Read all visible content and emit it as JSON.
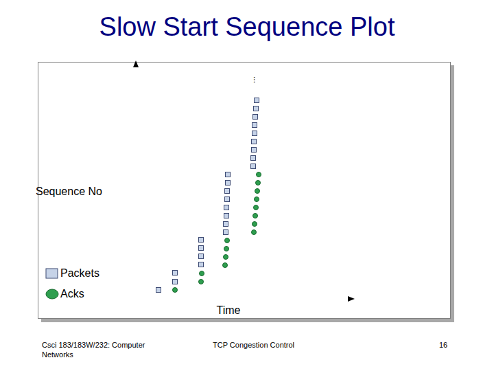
{
  "chart_data": {
    "type": "scatter",
    "title": "Slow Start Sequence Plot",
    "x_label": "Time",
    "y_label": "Sequence No",
    "tick_labels": false,
    "xlim": [
      0,
      317
    ],
    "ylim": [
      0,
      345
    ],
    "annotation": "...",
    "series": [
      {
        "name": "Packets",
        "color": "#c6d3e8",
        "marker": "square",
        "x": [
          33,
          57,
          57,
          95,
          95,
          95,
          95,
          131,
          131,
          132,
          132,
          133,
          133,
          134,
          134,
          171,
          171,
          172,
          172,
          173,
          173,
          174,
          175,
          176
        ],
        "values": [
          13,
          25,
          38,
          50,
          62,
          74,
          86,
          97,
          109,
          121,
          133,
          145,
          157,
          169,
          181,
          193,
          205,
          217,
          229,
          241,
          253,
          265,
          277,
          289
        ]
      },
      {
        "name": "Acks",
        "color": "#2e9e4f",
        "marker": "circle",
        "x": [
          57,
          95,
          96,
          130,
          131,
          132,
          133,
          172,
          173,
          174,
          175,
          176,
          177,
          178,
          179
        ],
        "values": [
          13,
          25,
          37,
          49,
          61,
          73,
          85,
          97,
          109,
          121,
          133,
          145,
          157,
          169,
          181
        ]
      }
    ]
  },
  "footer": {
    "left": "Csci 183/183W/232: Computer Networks",
    "center": "TCP Congestion Control",
    "page": "16"
  }
}
